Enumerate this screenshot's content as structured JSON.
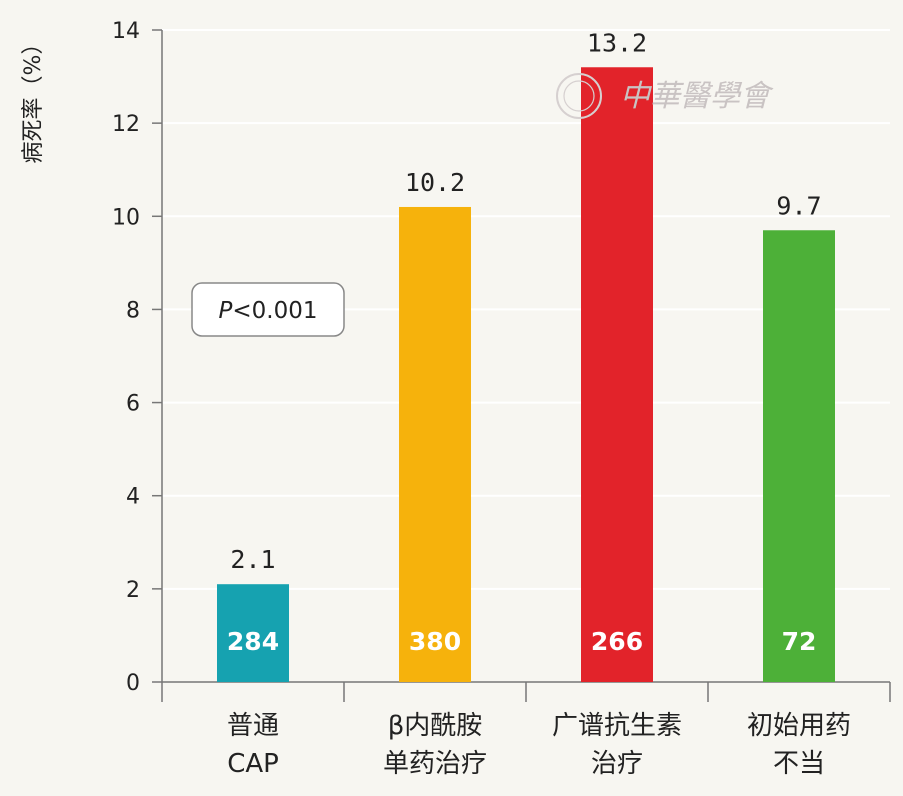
{
  "chart_data": {
    "type": "bar",
    "ylabel": "病死率（%）",
    "ylim": [
      0,
      14
    ],
    "yticks": [
      0,
      2,
      4,
      6,
      8,
      10,
      12,
      14
    ],
    "grid": true,
    "categories": [
      [
        "普通",
        "CAP"
      ],
      [
        "β内酰胺",
        "单药治疗"
      ],
      [
        "广谱抗生素",
        "治疗"
      ],
      [
        "初始用药",
        "不当"
      ]
    ],
    "values": [
      2.1,
      10.2,
      13.2,
      9.7
    ],
    "value_labels": [
      "2.1",
      "10.2",
      "13.2",
      "9.7"
    ],
    "counts": [
      "284",
      "380",
      "266",
      "72"
    ],
    "colors": [
      "#16a2b0",
      "#f6b20c",
      "#e2232a",
      "#4db038"
    ],
    "annotation": "P<0.001",
    "annotation_parts": {
      "italic": "P",
      "rest": "<0.001"
    }
  },
  "watermark": "中華醫學會"
}
